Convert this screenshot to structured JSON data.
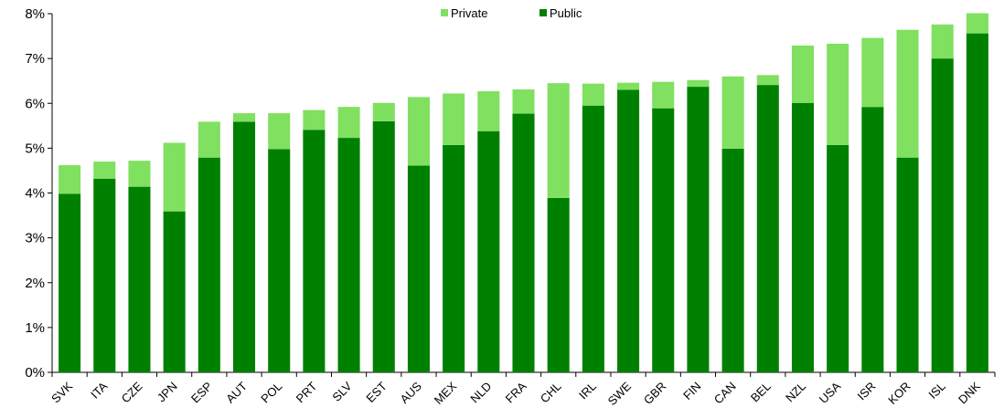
{
  "chart_data": {
    "type": "bar",
    "stacked": true,
    "categories": [
      "SVK",
      "ITA",
      "CZE",
      "JPN",
      "ESP",
      "AUT",
      "POL",
      "PRT",
      "SLV",
      "EST",
      "AUS",
      "MEX",
      "NLD",
      "FRA",
      "CHL",
      "IRL",
      "SWE",
      "GBR",
      "FIN",
      "CAN",
      "BEL",
      "NZL",
      "USA",
      "ISR",
      "KOR",
      "ISL",
      "DNK"
    ],
    "series": [
      {
        "name": "Public",
        "color": "#008000",
        "values": [
          3.98,
          4.32,
          4.14,
          3.59,
          4.79,
          5.59,
          4.98,
          5.41,
          5.23,
          5.6,
          4.61,
          5.07,
          5.38,
          5.77,
          3.89,
          5.95,
          6.3,
          5.89,
          6.37,
          4.99,
          6.41,
          6.01,
          5.07,
          5.92,
          4.79,
          7.0,
          7.56
        ]
      },
      {
        "name": "Private",
        "color": "#80e060",
        "values": [
          0.64,
          0.38,
          0.58,
          1.53,
          0.8,
          0.19,
          0.8,
          0.44,
          0.69,
          0.41,
          1.53,
          1.15,
          0.89,
          0.54,
          2.56,
          0.49,
          0.16,
          0.59,
          0.15,
          1.61,
          0.22,
          1.28,
          2.26,
          1.54,
          2.85,
          0.76,
          0.45
        ]
      }
    ],
    "legend_order": [
      "Private",
      "Public"
    ],
    "legend_position": "top",
    "y_ticks": [
      "0%",
      "1%",
      "2%",
      "3%",
      "4%",
      "5%",
      "6%",
      "7%",
      "8%"
    ],
    "ylim": [
      0,
      8
    ],
    "grid": false
  }
}
